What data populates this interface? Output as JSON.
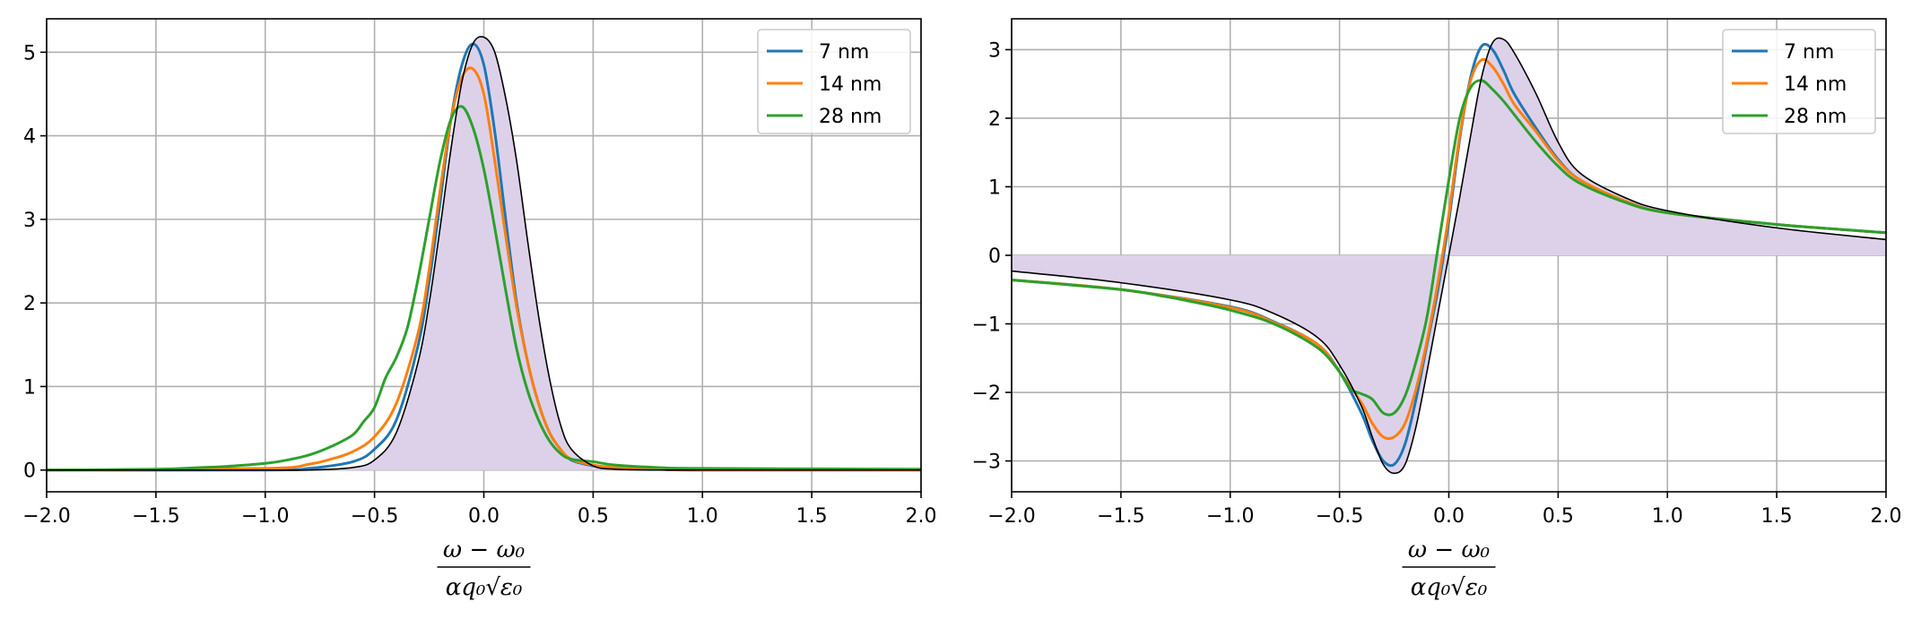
{
  "chart_data": [
    {
      "type": "line",
      "title": "",
      "xlabel": {
        "numerator": "ω − ω₀",
        "denominator": "αq₀√ε₀"
      },
      "ylabel": "",
      "xlim": [
        -2.0,
        2.0
      ],
      "ylim": [
        -0.26,
        5.4
      ],
      "x_ticks": [
        -2.0,
        -1.5,
        -1.0,
        -0.5,
        0.0,
        0.5,
        1.0,
        1.5,
        2.0
      ],
      "x_tick_labels": [
        "−2.0",
        "−1.5",
        "−1.0",
        "−0.5",
        "0.0",
        "0.5",
        "1.0",
        "1.5",
        "2.0"
      ],
      "y_ticks": [
        0,
        1,
        2,
        3,
        4,
        5
      ],
      "y_tick_labels": [
        "0",
        "1",
        "2",
        "3",
        "4",
        "5"
      ],
      "grid": true,
      "legend_position": "top-right",
      "reference_curve": {
        "color": "#000000",
        "fill": "#ddd1ea",
        "x": [
          -2.0,
          -1.0,
          -0.8,
          -0.6,
          -0.5,
          -0.4,
          -0.3,
          -0.25,
          -0.2,
          -0.15,
          -0.1,
          -0.05,
          0.0,
          0.05,
          0.1,
          0.15,
          0.2,
          0.25,
          0.3,
          0.35,
          0.4,
          0.5,
          0.6,
          0.8,
          1.0,
          2.0
        ],
        "y": [
          0.0,
          0.0,
          0.0,
          0.03,
          0.12,
          0.45,
          1.3,
          2.0,
          2.9,
          3.85,
          4.65,
          5.1,
          5.18,
          5.0,
          4.45,
          3.7,
          2.75,
          1.85,
          1.1,
          0.55,
          0.25,
          0.05,
          0.01,
          0.0,
          0.0,
          0.0
        ]
      },
      "series": [
        {
          "name": "7 nm",
          "color": "#1f77b4",
          "x": [
            -2.0,
            -1.0,
            -0.8,
            -0.6,
            -0.5,
            -0.4,
            -0.3,
            -0.25,
            -0.2,
            -0.15,
            -0.1,
            -0.05,
            0.0,
            0.05,
            0.1,
            0.15,
            0.2,
            0.25,
            0.3,
            0.35,
            0.4,
            0.5,
            0.6,
            0.8,
            1.0,
            2.0
          ],
          "y": [
            0.0,
            0.0,
            0.02,
            0.1,
            0.25,
            0.6,
            1.5,
            2.25,
            3.2,
            4.2,
            4.85,
            5.1,
            4.85,
            4.05,
            3.0,
            2.0,
            1.3,
            0.8,
            0.45,
            0.25,
            0.12,
            0.05,
            0.02,
            0.01,
            0.0,
            0.0
          ]
        },
        {
          "name": "14 nm",
          "color": "#ff7f0e",
          "x": [
            -2.0,
            -1.0,
            -0.8,
            -0.7,
            -0.6,
            -0.5,
            -0.4,
            -0.3,
            -0.25,
            -0.2,
            -0.15,
            -0.1,
            -0.05,
            0.0,
            0.05,
            0.1,
            0.15,
            0.2,
            0.25,
            0.3,
            0.35,
            0.4,
            0.5,
            0.6,
            0.8,
            1.0,
            2.0
          ],
          "y": [
            0.0,
            0.02,
            0.07,
            0.13,
            0.22,
            0.4,
            0.8,
            1.65,
            2.4,
            3.35,
            4.2,
            4.7,
            4.8,
            4.5,
            3.7,
            2.8,
            1.95,
            1.3,
            0.8,
            0.45,
            0.25,
            0.13,
            0.06,
            0.03,
            0.01,
            0.0,
            0.0
          ]
        },
        {
          "name": "28 nm",
          "color": "#2ca02c",
          "x": [
            -2.0,
            -1.5,
            -1.3,
            -1.2,
            -1.0,
            -0.9,
            -0.8,
            -0.7,
            -0.6,
            -0.55,
            -0.5,
            -0.45,
            -0.4,
            -0.35,
            -0.3,
            -0.25,
            -0.2,
            -0.15,
            -0.1,
            -0.05,
            0.0,
            0.05,
            0.1,
            0.15,
            0.2,
            0.25,
            0.3,
            0.35,
            0.4,
            0.5,
            0.6,
            0.8,
            1.0,
            2.0
          ],
          "y": [
            0.0,
            0.01,
            0.03,
            0.04,
            0.08,
            0.12,
            0.18,
            0.28,
            0.42,
            0.58,
            0.75,
            1.1,
            1.35,
            1.7,
            2.3,
            3.0,
            3.7,
            4.2,
            4.35,
            4.1,
            3.6,
            2.9,
            2.15,
            1.45,
            0.95,
            0.6,
            0.35,
            0.2,
            0.13,
            0.1,
            0.06,
            0.03,
            0.02,
            0.01
          ]
        }
      ]
    },
    {
      "type": "line",
      "title": "",
      "xlabel": {
        "numerator": "ω − ω₀",
        "denominator": "αq₀√ε₀"
      },
      "ylabel": "",
      "xlim": [
        -2.0,
        2.0
      ],
      "ylim": [
        -3.45,
        3.45
      ],
      "x_ticks": [
        -2.0,
        -1.5,
        -1.0,
        -0.5,
        0.0,
        0.5,
        1.0,
        1.5,
        2.0
      ],
      "x_tick_labels": [
        "−2.0",
        "−1.5",
        "−1.0",
        "−0.5",
        "0.0",
        "0.5",
        "1.0",
        "1.5",
        "2.0"
      ],
      "y_ticks": [
        -3,
        -2,
        -1,
        0,
        1,
        2,
        3
      ],
      "y_tick_labels": [
        "−3",
        "−2",
        "−1",
        "0",
        "1",
        "2",
        "3"
      ],
      "grid": true,
      "legend_position": "top-right",
      "reference_curve": {
        "color": "#000000",
        "fill": "#ddd1ea",
        "x": [
          -2.0,
          -1.5,
          -1.0,
          -0.8,
          -0.6,
          -0.5,
          -0.4,
          -0.35,
          -0.3,
          -0.25,
          -0.2,
          -0.15,
          -0.1,
          -0.05,
          0.0,
          0.05,
          0.1,
          0.15,
          0.2,
          0.25,
          0.3,
          0.4,
          0.5,
          0.6,
          0.8,
          1.0,
          1.5,
          2.0
        ],
        "y": [
          -0.23,
          -0.4,
          -0.65,
          -0.85,
          -1.2,
          -1.6,
          -2.2,
          -2.65,
          -3.05,
          -3.18,
          -3.05,
          -2.5,
          -1.7,
          -0.85,
          0.0,
          0.85,
          1.75,
          2.6,
          3.1,
          3.15,
          2.95,
          2.35,
          1.65,
          1.2,
          0.85,
          0.65,
          0.4,
          0.23
        ]
      },
      "series": [
        {
          "name": "7 nm",
          "color": "#1f77b4",
          "x": [
            -2.0,
            -1.5,
            -1.0,
            -0.8,
            -0.6,
            -0.5,
            -0.4,
            -0.35,
            -0.3,
            -0.25,
            -0.2,
            -0.15,
            -0.1,
            -0.05,
            0.0,
            0.05,
            0.1,
            0.15,
            0.2,
            0.25,
            0.3,
            0.4,
            0.5,
            0.6,
            0.8,
            1.0,
            1.5,
            2.0
          ],
          "y": [
            -0.36,
            -0.5,
            -0.75,
            -0.97,
            -1.3,
            -1.7,
            -2.3,
            -2.7,
            -3.0,
            -3.05,
            -2.75,
            -2.1,
            -1.3,
            -0.5,
            0.5,
            1.7,
            2.6,
            3.05,
            3.0,
            2.7,
            2.35,
            1.85,
            1.4,
            1.1,
            0.8,
            0.62,
            0.45,
            0.33
          ]
        },
        {
          "name": "14 nm",
          "color": "#ff7f0e",
          "x": [
            -2.0,
            -1.5,
            -1.0,
            -0.8,
            -0.6,
            -0.5,
            -0.4,
            -0.35,
            -0.3,
            -0.25,
            -0.2,
            -0.15,
            -0.1,
            -0.05,
            0.0,
            0.05,
            0.1,
            0.15,
            0.2,
            0.25,
            0.3,
            0.4,
            0.5,
            0.6,
            0.8,
            1.0,
            1.5,
            2.0
          ],
          "y": [
            -0.36,
            -0.5,
            -0.76,
            -0.98,
            -1.3,
            -1.7,
            -2.15,
            -2.45,
            -2.65,
            -2.65,
            -2.45,
            -1.95,
            -1.25,
            -0.4,
            0.6,
            1.75,
            2.55,
            2.85,
            2.75,
            2.5,
            2.2,
            1.8,
            1.38,
            1.1,
            0.8,
            0.62,
            0.45,
            0.33
          ]
        },
        {
          "name": "28 nm",
          "color": "#2ca02c",
          "x": [
            -2.0,
            -1.5,
            -1.3,
            -1.2,
            -1.0,
            -0.8,
            -0.6,
            -0.5,
            -0.45,
            -0.4,
            -0.35,
            -0.3,
            -0.25,
            -0.2,
            -0.15,
            -0.1,
            -0.05,
            0.0,
            0.05,
            0.1,
            0.15,
            0.2,
            0.25,
            0.3,
            0.4,
            0.5,
            0.6,
            0.8,
            1.0,
            1.5,
            2.0
          ],
          "y": [
            -0.36,
            -0.5,
            -0.6,
            -0.66,
            -0.8,
            -1.0,
            -1.35,
            -1.7,
            -1.95,
            -2.02,
            -2.1,
            -2.3,
            -2.3,
            -2.05,
            -1.55,
            -0.9,
            0.1,
            1.1,
            2.0,
            2.45,
            2.55,
            2.42,
            2.25,
            2.05,
            1.65,
            1.3,
            1.05,
            0.78,
            0.62,
            0.45,
            0.33
          ]
        }
      ]
    }
  ]
}
